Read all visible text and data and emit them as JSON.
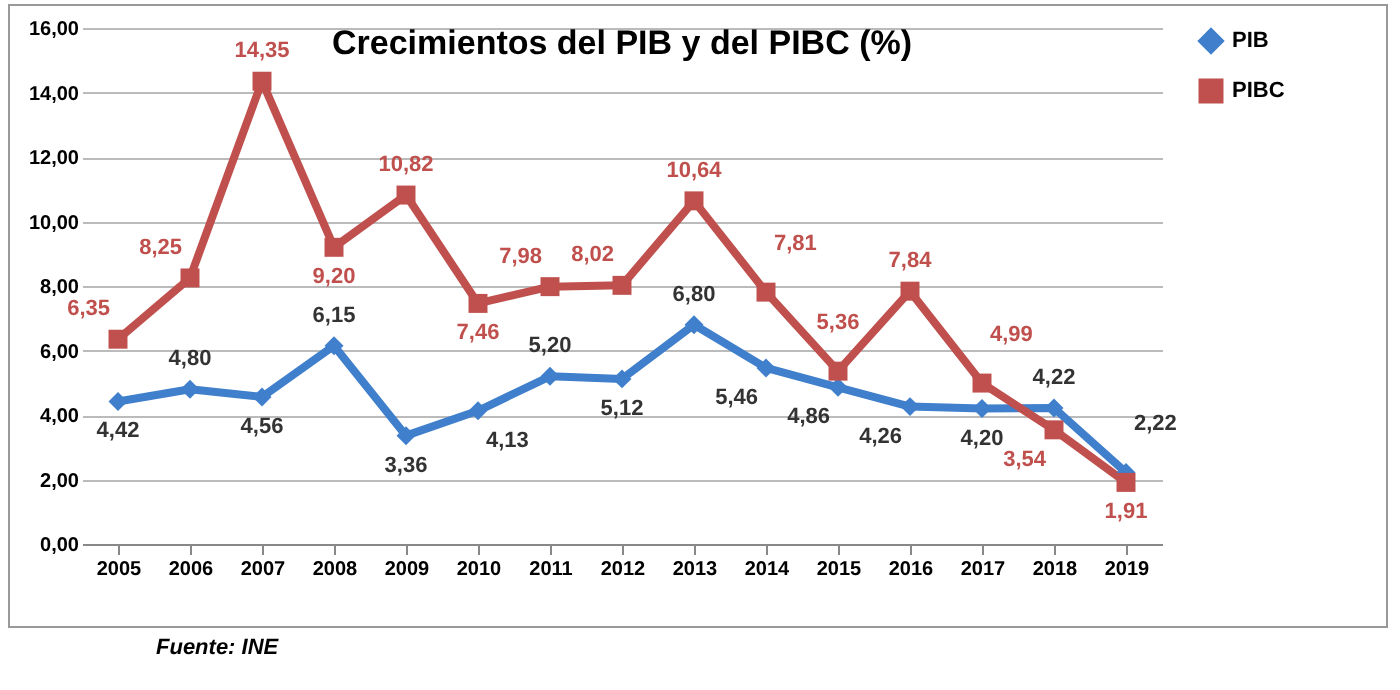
{
  "chart_data": {
    "type": "line",
    "title": "Crecimientos del PIB y del PIBC (%)",
    "categories": [
      "2005",
      "2006",
      "2007",
      "2008",
      "2009",
      "2010",
      "2011",
      "2012",
      "2013",
      "2014",
      "2015",
      "2016",
      "2017",
      "2018",
      "2019"
    ],
    "series": [
      {
        "name": "PIB",
        "color": "#3f7fcc",
        "marker": "diamond",
        "values": [
          4.42,
          4.8,
          4.56,
          6.15,
          3.36,
          4.13,
          5.2,
          5.12,
          6.8,
          5.46,
          4.86,
          4.26,
          4.2,
          4.22,
          2.22
        ],
        "value_labels": [
          "4,42",
          "4,80",
          "4,56",
          "6,15",
          "3,36",
          "4,13",
          "5,20",
          "5,12",
          "6,80",
          "5,46",
          "4,86",
          "4,26",
          "4,20",
          "4,22",
          "2,22"
        ]
      },
      {
        "name": "PIBC",
        "color": "#c0504d",
        "marker": "square",
        "values": [
          6.35,
          8.25,
          14.35,
          9.2,
          10.82,
          7.46,
          7.98,
          8.02,
          10.64,
          7.81,
          5.36,
          7.84,
          4.99,
          3.54,
          1.91
        ],
        "value_labels": [
          "6,35",
          "8,25",
          "14,35",
          "9,20",
          "10,82",
          "7,46",
          "7,98",
          "8,02",
          "10,64",
          "7,81",
          "5,36",
          "7,84",
          "4,99",
          "3,54",
          "1,91"
        ]
      }
    ],
    "ylim": [
      0,
      16
    ],
    "yticks": [
      {
        "value": 0,
        "label": "0,00"
      },
      {
        "value": 2,
        "label": "2,00"
      },
      {
        "value": 4,
        "label": "4,00"
      },
      {
        "value": 6,
        "label": "6,00"
      },
      {
        "value": 8,
        "label": "8,00"
      },
      {
        "value": 10,
        "label": "10,00"
      },
      {
        "value": 12,
        "label": "12,00"
      },
      {
        "value": 14,
        "label": "14,00"
      },
      {
        "value": 16,
        "label": "16,00"
      }
    ],
    "grid": "y",
    "legend": "right",
    "line_style": "solid",
    "annotations": [
      "Fuente: INE"
    ]
  }
}
